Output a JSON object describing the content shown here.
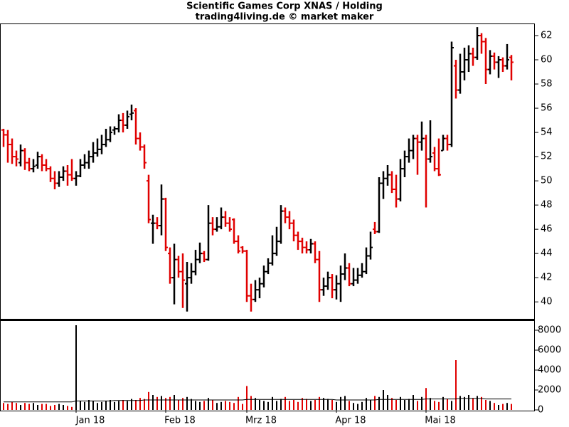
{
  "chart_data": {
    "type": "ohlc",
    "title": "Scientific Games Corp XNAS / Holding",
    "subtitle": "trading4living.de © market maker",
    "up_color": "#000000",
    "down_color": "#e00000",
    "categories": [
      null,
      null,
      null,
      null,
      null,
      null,
      null,
      null,
      null,
      null,
      null,
      null,
      null,
      null,
      null,
      null,
      null,
      "Jan 18",
      null,
      null,
      null,
      null,
      null,
      null,
      null,
      null,
      null,
      null,
      null,
      null,
      null,
      null,
      null,
      null,
      null,
      null,
      null,
      null,
      "Feb 18",
      null,
      null,
      null,
      null,
      null,
      null,
      null,
      null,
      null,
      null,
      null,
      null,
      null,
      null,
      null,
      null,
      null,
      null,
      "Mrz 18",
      null,
      null,
      null,
      null,
      null,
      null,
      null,
      null,
      null,
      null,
      null,
      null,
      null,
      null,
      null,
      null,
      null,
      null,
      null,
      null,
      "Apr 18",
      null,
      null,
      null,
      null,
      null,
      null,
      null,
      null,
      null,
      null,
      null,
      null,
      null,
      null,
      null,
      null,
      null,
      null,
      null,
      null,
      "Mai 18",
      null,
      null,
      null,
      null,
      null,
      null,
      null,
      null,
      null,
      null,
      null,
      null,
      null,
      null,
      null,
      null,
      null,
      null,
      null,
      null
    ],
    "ohlc": [
      [
        54.2,
        54.3,
        52.8,
        53.8
      ],
      [
        53.8,
        54.2,
        51.5,
        53
      ],
      [
        53,
        53.5,
        51.4,
        52
      ],
      [
        52,
        52.5,
        51.2,
        51.8
      ],
      [
        51.5,
        53,
        51.2,
        52.5
      ],
      [
        52.5,
        52.7,
        50.9,
        51.5
      ],
      [
        51.5,
        51.9,
        50.8,
        51
      ],
      [
        51,
        51.8,
        50.7,
        51.2
      ],
      [
        51.3,
        52.4,
        51,
        52
      ],
      [
        52,
        52.2,
        50.8,
        51.3
      ],
      [
        51.3,
        51.8,
        50.8,
        51
      ],
      [
        51,
        51.2,
        49.9,
        50.2
      ],
      [
        50.2,
        50.8,
        49.3,
        49.8
      ],
      [
        49.8,
        50.8,
        49.5,
        50.3
      ],
      [
        50.3,
        51.2,
        50,
        50.8
      ],
      [
        50.8,
        51.3,
        49.6,
        50.5
      ],
      [
        50.5,
        51.8,
        50,
        50.2
      ],
      [
        50.2,
        50.8,
        49.6,
        50.4
      ],
      [
        50.4,
        51.8,
        50.3,
        51.3
      ],
      [
        51.3,
        52.2,
        51,
        51.5
      ],
      [
        51.5,
        52.5,
        51,
        52
      ],
      [
        52,
        53.2,
        51.5,
        52.3
      ],
      [
        52.3,
        53.5,
        52,
        52.6
      ],
      [
        52.6,
        53.8,
        52.2,
        53
      ],
      [
        53,
        54.3,
        52.8,
        53.4
      ],
      [
        53.4,
        54.5,
        53.2,
        54
      ],
      [
        54.2,
        54.5,
        53.8,
        54.3
      ],
      [
        54.3,
        55.5,
        54,
        55
      ],
      [
        55,
        55.6,
        54,
        54.6
      ],
      [
        54.6,
        55.8,
        54.3,
        55.3
      ],
      [
        55.5,
        56.3,
        55,
        55.6
      ],
      [
        55.8,
        56,
        53,
        53.5
      ],
      [
        53.5,
        54,
        52.5,
        52.8
      ],
      [
        52.8,
        53,
        51,
        51.5
      ],
      [
        50,
        50.5,
        46.5,
        46.8
      ],
      [
        46.5,
        47.2,
        44.8,
        46.5
      ],
      [
        46.5,
        47,
        46,
        46.3
      ],
      [
        46.3,
        49.7,
        45.5,
        48.5
      ],
      [
        48.5,
        48.6,
        44.2,
        44.5
      ],
      [
        44,
        44.5,
        41.5,
        42
      ],
      [
        42,
        44.8,
        39.8,
        43.5
      ],
      [
        43.5,
        43.8,
        42,
        42.5
      ],
      [
        42.5,
        44,
        39.5,
        41.8
      ],
      [
        41.5,
        43.3,
        39.2,
        42
      ],
      [
        42,
        43.2,
        41.5,
        42.5
      ],
      [
        42.5,
        44.3,
        42.2,
        43.5
      ],
      [
        43.5,
        44.9,
        43.2,
        44
      ],
      [
        44,
        44.2,
        43.3,
        43.5
      ],
      [
        43.5,
        48,
        43.4,
        46.5
      ],
      [
        46.5,
        47,
        45.5,
        46
      ],
      [
        46,
        47,
        45.8,
        46.2
      ],
      [
        46.2,
        47.8,
        46,
        47
      ],
      [
        47,
        47.5,
        46.2,
        46.5
      ],
      [
        46.5,
        47,
        45.8,
        46
      ],
      [
        46.8,
        46.9,
        44.8,
        45
      ],
      [
        45,
        45.5,
        44,
        44.2
      ],
      [
        44.5,
        44.6,
        44,
        44.2
      ],
      [
        44.2,
        44.3,
        40,
        40.5
      ],
      [
        40.5,
        41.5,
        39.2,
        40.2
      ],
      [
        40.2,
        41.8,
        40,
        41
      ],
      [
        41,
        42,
        40.3,
        41.5
      ],
      [
        41.5,
        43,
        41.2,
        42.5
      ],
      [
        42.5,
        43.6,
        42.3,
        43.2
      ],
      [
        43.2,
        45.5,
        43,
        44
      ],
      [
        44,
        46.2,
        43.8,
        45
      ],
      [
        45,
        48,
        44.8,
        47.5
      ],
      [
        47.5,
        47.8,
        46.5,
        47
      ],
      [
        47,
        47.5,
        46,
        46.5
      ],
      [
        46.5,
        46.8,
        45,
        45.5
      ],
      [
        45.5,
        45.8,
        44.3,
        45
      ],
      [
        45,
        45.3,
        44,
        44.5
      ],
      [
        44.5,
        45,
        44,
        44.3
      ],
      [
        44.3,
        45.2,
        44,
        44.8
      ],
      [
        44.8,
        45,
        43.2,
        43.5
      ],
      [
        43.5,
        44.2,
        40,
        41
      ],
      [
        41,
        42,
        40.5,
        41.3
      ],
      [
        41.3,
        42.5,
        41,
        42
      ],
      [
        42,
        42.3,
        40.3,
        41
      ],
      [
        41,
        42.2,
        40.2,
        41.5
      ],
      [
        41.5,
        43,
        40,
        42.3
      ],
      [
        42.3,
        44,
        41.8,
        42.8
      ],
      [
        42.8,
        43.2,
        41.3,
        41.5
      ],
      [
        41.5,
        42.8,
        41.3,
        41.8
      ],
      [
        41.8,
        42.8,
        41.5,
        42.2
      ],
      [
        42.2,
        43.2,
        42,
        42.5
      ],
      [
        42.5,
        44.5,
        42.3,
        43.8
      ],
      [
        43.8,
        45.8,
        43.5,
        44.5
      ],
      [
        46,
        46.6,
        45.6,
        45.8
      ],
      [
        45.8,
        50.3,
        45.7,
        49.8
      ],
      [
        49.8,
        50.8,
        48.5,
        50.2
      ],
      [
        50.2,
        51.3,
        49.6,
        50.5
      ],
      [
        50.5,
        50.8,
        49,
        49.3
      ],
      [
        49.3,
        50.5,
        47.8,
        48.5
      ],
      [
        48.5,
        51.8,
        48.3,
        51
      ],
      [
        51,
        52.5,
        50.3,
        52
      ],
      [
        52,
        53.5,
        51.5,
        52.5
      ],
      [
        52.5,
        53.8,
        51.8,
        53.5
      ],
      [
        53.5,
        53.8,
        50.5,
        53.2
      ],
      [
        53.2,
        54.9,
        52.5,
        53.5
      ],
      [
        53.5,
        53.8,
        47.8,
        51.8
      ],
      [
        51.8,
        55,
        51.5,
        52
      ],
      [
        52.3,
        52.8,
        50.8,
        51
      ],
      [
        51,
        53.5,
        50.4,
        50.5
      ],
      [
        52.5,
        53.8,
        52.5,
        53.5
      ],
      [
        53.5,
        53.8,
        52.5,
        53
      ],
      [
        53,
        61.5,
        52.8,
        61
      ],
      [
        59.5,
        60,
        56.8,
        57.5
      ],
      [
        57.5,
        60.5,
        57.2,
        59
      ],
      [
        59,
        61,
        58.3,
        60
      ],
      [
        60,
        61.2,
        59,
        60.5
      ],
      [
        60.5,
        61,
        59.5,
        60.2
      ],
      [
        60.2,
        62.7,
        60,
        62
      ],
      [
        62,
        62.2,
        60.5,
        61.5
      ],
      [
        61.5,
        61.8,
        58,
        59.2
      ],
      [
        59.2,
        60.8,
        58.8,
        60.3
      ],
      [
        60.3,
        60.6,
        59.2,
        59.8
      ],
      [
        59.8,
        60.3,
        58.5,
        60
      ],
      [
        60,
        60.2,
        59,
        59.5
      ],
      [
        59.5,
        61.3,
        59.2,
        60
      ],
      [
        60.2,
        60.4,
        58.3,
        59.8
      ]
    ],
    "ylim": [
      38.6,
      63
    ],
    "yticks": [
      40,
      42,
      44,
      46,
      48,
      50,
      52,
      54,
      56,
      58,
      60,
      62
    ],
    "volume": [
      700,
      600,
      800,
      700,
      500,
      700,
      600,
      700,
      500,
      600,
      600,
      400,
      500,
      600,
      500,
      400,
      300,
      8500,
      900,
      800,
      1000,
      900,
      700,
      800,
      900,
      1000,
      800,
      900,
      1000,
      900,
      1100,
      1000,
      1200,
      1100,
      1800,
      1500,
      1300,
      1400,
      1200,
      1300,
      1500,
      1000,
      1200,
      1300,
      1100,
      900,
      800,
      900,
      1200,
      1000,
      700,
      800,
      900,
      800,
      700,
      1300,
      600,
      2400,
      1400,
      1200,
      1000,
      900,
      800,
      1300,
      900,
      1100,
      1300,
      900,
      1000,
      800,
      1200,
      1100,
      900,
      1000,
      1300,
      1200,
      1100,
      1000,
      800,
      1300,
      1400,
      900,
      700,
      600,
      800,
      1200,
      1000,
      1400,
      1300,
      2000,
      1500,
      1200,
      1000,
      1300,
      1000,
      1100,
      1500,
      900,
      1300,
      2200,
      1200,
      900,
      800,
      1300,
      1100,
      900,
      5000,
      1400,
      1300,
      1500,
      1200,
      1400,
      1300,
      1000,
      900,
      700,
      500,
      600,
      700,
      600
    ],
    "volume_avg": [
      800,
      800,
      800,
      800,
      800,
      800,
      800,
      800,
      800,
      800,
      800,
      800,
      800,
      800,
      800,
      800,
      800,
      900,
      900,
      900,
      900,
      900,
      900,
      900,
      900,
      900,
      950,
      950,
      950,
      950,
      950,
      950,
      950,
      1000,
      1000,
      1000,
      1000,
      1000,
      1000,
      1000,
      1000,
      1000,
      1000,
      1000,
      1000,
      1000,
      1000,
      1000,
      1000,
      1000,
      1000,
      1000,
      1000,
      1000,
      1000,
      1000,
      1000,
      1050,
      1050,
      1050,
      1050,
      1050,
      1050,
      1050,
      1050,
      1050,
      1050,
      1050,
      1050,
      1050,
      1050,
      1050,
      1050,
      1050,
      1050,
      1050,
      1050,
      1050,
      1000,
      1000,
      1000,
      1000,
      1000,
      1000,
      1000,
      1000,
      1000,
      1000,
      1050,
      1050,
      1050,
      1050,
      1050,
      1050,
      1050,
      1050,
      1050,
      1050,
      1050,
      1100,
      1100,
      1100,
      1100,
      1100,
      1100,
      1100,
      1100,
      1150,
      1150,
      1150,
      1150,
      1150,
      1150,
      1100,
      1100,
      1100,
      1100,
      1100,
      1100,
      1100
    ],
    "y2lim": [
      0,
      9000
    ],
    "y2ticks": [
      0,
      2000,
      4000,
      6000,
      8000
    ]
  }
}
